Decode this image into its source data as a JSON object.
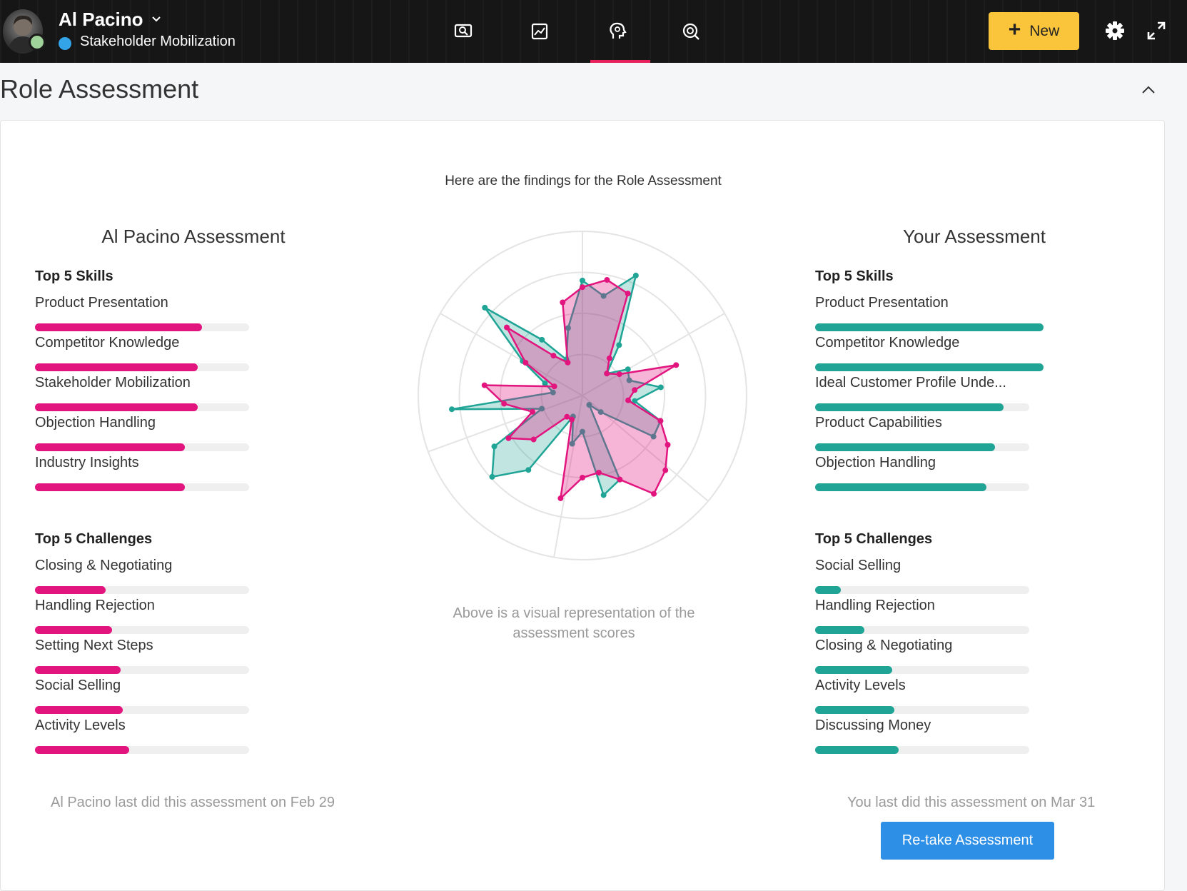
{
  "header": {
    "user_name": "Al Pacino",
    "subtitle": "Stakeholder Mobilization",
    "new_button": "New",
    "nav_icons": [
      "search-screen-icon",
      "chart-icon",
      "head-lightbulb-icon",
      "target-icon"
    ],
    "active_tab_index": 2,
    "colors": {
      "accent": "#e8215d",
      "new_button": "#fbc53b",
      "status_dot": "#34a4e8"
    }
  },
  "section": {
    "title": "Role Assessment"
  },
  "card": {
    "intro": "Here are the findings for the Role Assessment",
    "left": {
      "title": "Al Pacino Assessment",
      "skills_title": "Top 5 Skills",
      "skills": [
        {
          "label": "Product Presentation",
          "value": 0.78
        },
        {
          "label": "Competitor Knowledge",
          "value": 0.76
        },
        {
          "label": "Stakeholder Mobilization",
          "value": 0.76
        },
        {
          "label": "Objection Handling",
          "value": 0.7
        },
        {
          "label": "Industry Insights",
          "value": 0.7
        }
      ],
      "challenges_title": "Top 5 Challenges",
      "challenges": [
        {
          "label": "Closing & Negotiating",
          "value": 0.33
        },
        {
          "label": "Handling Rejection",
          "value": 0.36
        },
        {
          "label": "Setting Next Steps",
          "value": 0.4
        },
        {
          "label": "Social Selling",
          "value": 0.41
        },
        {
          "label": "Activity Levels",
          "value": 0.44
        }
      ],
      "footnote": "Al Pacino last did this assessment on Feb 29",
      "color": "#e2157f"
    },
    "right": {
      "title": "Your Assessment",
      "skills_title": "Top 5 Skills",
      "skills": [
        {
          "label": "Product Presentation",
          "value": 1.0
        },
        {
          "label": "Competitor Knowledge",
          "value": 0.98
        },
        {
          "label": "Ideal Customer Profile Unde...",
          "value": 0.88
        },
        {
          "label": "Product Capabilities",
          "value": 0.84
        },
        {
          "label": "Objection Handling",
          "value": 0.8
        }
      ],
      "challenges_title": "Top 5 Challenges",
      "challenges": [
        {
          "label": "Social Selling",
          "value": 0.12
        },
        {
          "label": "Handling Rejection",
          "value": 0.23
        },
        {
          "label": "Closing & Negotiating",
          "value": 0.36
        },
        {
          "label": "Activity Levels",
          "value": 0.37
        },
        {
          "label": "Discussing Money",
          "value": 0.39
        }
      ],
      "footnote": "You last did this assessment on Mar 31",
      "retake_button": "Re-take Assessment",
      "color": "#20a496"
    },
    "caption": "Above is a visual representation of the assessment scores",
    "chart_data": {
      "type": "radar",
      "rings": 4,
      "series": [
        {
          "color": "#20a496",
          "values": [
            0.7,
            0.62,
            0.8,
            0.38,
            0.2,
            0.32,
            0.3,
            0.48,
            0.32,
            0.5,
            0.5,
            0.15,
            0.07,
            0.56,
            0.62,
            0.22,
            0.3,
            0.14,
            0.56,
            0.74,
            0.62,
            0.26,
            0.8,
            0.18,
            0.24,
            0.42,
            0.8,
            0.42,
            0.24,
            0.42
          ]
        },
        {
          "color": "#e2157f",
          "values": [
            0.66,
            0.72,
            0.68,
            0.28,
            0.2,
            0.26,
            0.6,
            0.32,
            0.28,
            0.5,
            0.6,
            0.68,
            0.74,
            0.56,
            0.48,
            0.5,
            0.64,
            0.16,
            0.16,
            0.4,
            0.52,
            0.32,
            0.48,
            0.6,
            0.18,
            0.4,
            0.62,
            0.3,
            0.22,
            0.58
          ]
        }
      ]
    }
  }
}
